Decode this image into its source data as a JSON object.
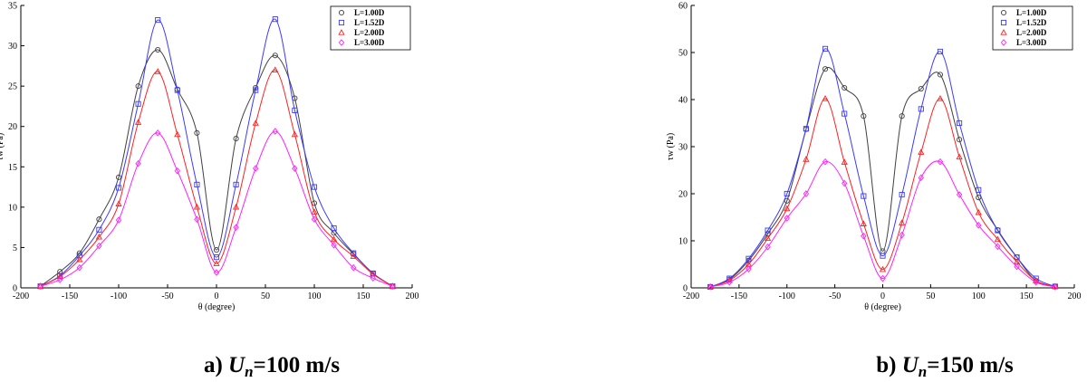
{
  "panels": [
    {
      "caption": {
        "prefix": "a) ",
        "var": "U",
        "sub": "n",
        "value": "=100 m/s"
      }
    },
    {
      "caption": {
        "prefix": "b) ",
        "var": "U",
        "sub": "n",
        "value": "=150 m/s"
      }
    }
  ],
  "chart_data": [
    {
      "type": "line",
      "xlabel": "θ (degree)",
      "ylabel": "τw (Pa)",
      "xlim": [
        -200,
        200
      ],
      "ylim": [
        0,
        35
      ],
      "xticks": [
        -200,
        -150,
        -100,
        -50,
        0,
        50,
        100,
        150,
        200
      ],
      "yticks": [
        0,
        5,
        10,
        15,
        20,
        25,
        30,
        35
      ],
      "legend_position": "top-right",
      "x": [
        -180,
        -160,
        -140,
        -120,
        -100,
        -80,
        -60,
        -40,
        -20,
        0,
        20,
        40,
        60,
        80,
        100,
        120,
        140,
        160,
        180
      ],
      "series": [
        {
          "name": "L=1.00D",
          "marker": "circle",
          "color": "#404040",
          "values": [
            0.2,
            2.0,
            4.3,
            8.5,
            13.7,
            25.0,
            29.5,
            24.6,
            19.2,
            4.7,
            18.5,
            24.8,
            28.8,
            23.5,
            10.5,
            6.8,
            4.2,
            1.8,
            0.2
          ]
        },
        {
          "name": "L=1.52D",
          "marker": "square",
          "color": "#3a3aff",
          "values": [
            0.2,
            1.5,
            4.0,
            7.2,
            12.4,
            22.8,
            33.2,
            24.5,
            12.8,
            3.8,
            12.8,
            24.5,
            33.3,
            22.0,
            12.5,
            7.4,
            4.3,
            1.8,
            0.2
          ]
        },
        {
          "name": "L=2.00D",
          "marker": "triangle",
          "color": "#ff2020",
          "values": [
            0.2,
            1.4,
            3.5,
            6.3,
            10.4,
            20.5,
            26.8,
            19.0,
            10.0,
            3.0,
            10.0,
            20.4,
            27.0,
            19.0,
            9.4,
            6.0,
            3.9,
            1.7,
            0.2
          ]
        },
        {
          "name": "L=3.00D",
          "marker": "diamond",
          "color": "#ff20ff",
          "values": [
            0.2,
            1.0,
            2.5,
            5.2,
            8.4,
            15.4,
            19.2,
            14.5,
            8.5,
            1.9,
            7.5,
            14.8,
            19.4,
            14.8,
            8.5,
            5.3,
            2.5,
            1.2,
            0.2
          ]
        }
      ]
    },
    {
      "type": "line",
      "xlabel": "θ (degree)",
      "ylabel": "τw (Pa)",
      "xlim": [
        -200,
        200
      ],
      "ylim": [
        0,
        60
      ],
      "xticks": [
        -200,
        -150,
        -100,
        -50,
        0,
        50,
        100,
        150,
        200
      ],
      "yticks": [
        0,
        10,
        20,
        30,
        40,
        50,
        60
      ],
      "legend_position": "top-right",
      "x": [
        -180,
        -160,
        -140,
        -120,
        -100,
        -80,
        -60,
        -40,
        -20,
        0,
        20,
        40,
        60,
        80,
        100,
        120,
        140,
        160,
        180
      ],
      "series": [
        {
          "name": "L=1.00D",
          "marker": "circle",
          "color": "#404040",
          "values": [
            0.2,
            1.8,
            5.8,
            11.5,
            18.5,
            33.7,
            46.5,
            42.5,
            36.5,
            7.8,
            36.5,
            42.3,
            45.3,
            31.5,
            19.2,
            12.3,
            6.5,
            1.5,
            0.3
          ]
        },
        {
          "name": "L=1.52D",
          "marker": "square",
          "color": "#3a3aff",
          "values": [
            0.2,
            2.0,
            6.2,
            12.2,
            20.0,
            33.8,
            50.8,
            37.0,
            19.5,
            6.8,
            19.8,
            38.0,
            50.2,
            35.0,
            20.8,
            12.2,
            6.5,
            2.0,
            0.3
          ]
        },
        {
          "name": "L=2.00D",
          "marker": "triangle",
          "color": "#ff2020",
          "values": [
            0.2,
            1.6,
            5.0,
            10.5,
            16.8,
            27.3,
            40.2,
            26.7,
            13.6,
            3.9,
            13.8,
            28.8,
            40.2,
            27.8,
            16.0,
            10.3,
            5.5,
            1.5,
            0.3
          ]
        },
        {
          "name": "L=3.00D",
          "marker": "diamond",
          "color": "#ff20ff",
          "values": [
            0.2,
            1.2,
            4.0,
            8.7,
            14.8,
            20.0,
            26.8,
            22.2,
            11.0,
            2.0,
            11.2,
            23.4,
            26.8,
            19.8,
            13.3,
            8.8,
            4.5,
            1.2,
            0.2
          ]
        }
      ]
    }
  ]
}
